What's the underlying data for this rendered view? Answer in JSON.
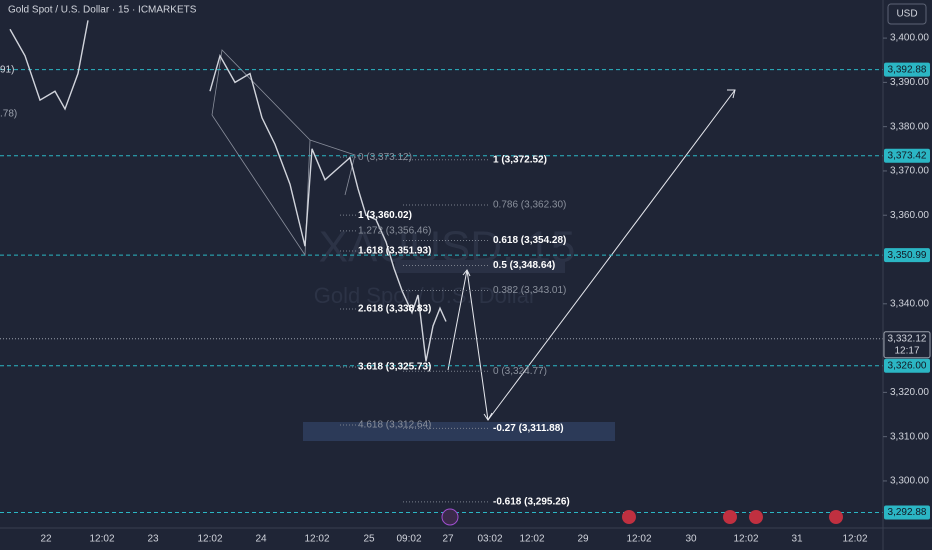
{
  "header": {
    "title": "Gold Spot / U.S. Dollar · 15 · ICMARKETS",
    "currency": "USD"
  },
  "watermark": {
    "symbol": "XAUUSD, 15",
    "name": "Gold Spot / U.S. Dollar"
  },
  "edge_labels": [
    "91)",
    ".78)"
  ],
  "price_axis": {
    "ylim": [
      3289.6,
      3408.6
    ],
    "yticks": [
      {
        "value": 3400,
        "label": "3,400.00"
      },
      {
        "value": 3390,
        "label": "3,390.00"
      },
      {
        "value": 3380,
        "label": "3,380.00"
      },
      {
        "value": 3370,
        "label": "3,370.00"
      },
      {
        "value": 3360,
        "label": "3,360.00"
      },
      {
        "value": 3340,
        "label": "3,340.00"
      },
      {
        "value": 3320,
        "label": "3,320.00"
      },
      {
        "value": 3310,
        "label": "3,310.00"
      },
      {
        "value": 3300,
        "label": "3,300.00"
      }
    ],
    "price_tags": [
      {
        "value": 3392.88,
        "label": "3,392.88"
      },
      {
        "value": 3373.42,
        "label": "3,373.42"
      },
      {
        "value": 3350.99,
        "label": "3,350.99"
      },
      {
        "value": 3326.0,
        "label": "3,326.00"
      },
      {
        "value": 3292.88,
        "label": "3,292.88"
      }
    ],
    "current": {
      "value": 3332.12,
      "label": "3,332.12",
      "countdown": "12:17"
    }
  },
  "time_axis": [
    "22",
    "12:02",
    "23",
    "12:02",
    "24",
    "12:02",
    "25",
    "09:02",
    "27",
    "03:02",
    "12:02",
    "29",
    "12:02",
    "30",
    "12:02",
    "31",
    "12:02"
  ],
  "fib_left": [
    {
      "value": 3373.12,
      "label": "0 (3,373.12)"
    },
    {
      "value": 3360.02,
      "label": "1 (3,360.02)"
    },
    {
      "value": 3356.46,
      "label": "1.272 (3,356.46)"
    },
    {
      "value": 3351.93,
      "label": "1.618 (3,351.93)"
    },
    {
      "value": 3338.83,
      "label": "2.618 (3,338.83)"
    },
    {
      "value": 3325.73,
      "label": "3.618 (3,325.73)"
    },
    {
      "value": 3312.64,
      "label": "4.618 (3,312.64)"
    }
  ],
  "fib_right": [
    {
      "value": 3372.52,
      "label": "1 (3,372.52)"
    },
    {
      "value": 3362.3,
      "label": "0.786 (3,362.30)"
    },
    {
      "value": 3354.28,
      "label": "0.618 (3,354.28)"
    },
    {
      "value": 3348.64,
      "label": "0.5 (3,348.64)"
    },
    {
      "value": 3343.01,
      "label": "0.382 (3,343.01)"
    },
    {
      "value": 3324.77,
      "label": "0 (3,324.77)"
    },
    {
      "value": 3311.88,
      "label": "-0.27 (3,311.88)"
    },
    {
      "value": 3295.26,
      "label": "-0.618 (3,295.26)"
    }
  ],
  "price_line": [
    3402,
    3396,
    3386,
    3388,
    3384,
    3392,
    3404,
    null,
    3388,
    3396,
    3390,
    3392,
    3382,
    3376,
    3367,
    3353,
    3375,
    3368,
    3371,
    3373,
    3366,
    3360,
    3359,
    3354,
    3348,
    3343,
    3338,
    3342,
    3327,
    3335,
    3339,
    3336
  ]
}
